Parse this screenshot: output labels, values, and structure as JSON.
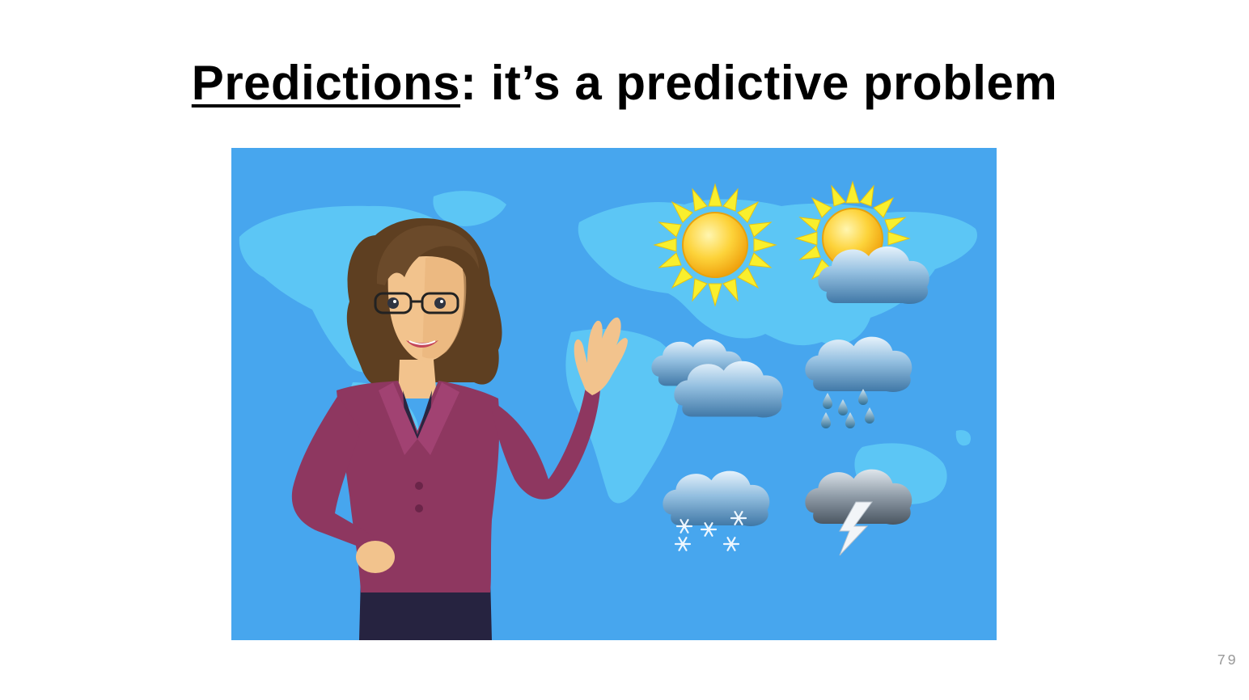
{
  "slide": {
    "title_keyword": "Predictions",
    "title_rest": ": it’s a predictive problem",
    "page_number": "79"
  },
  "illustration": {
    "subject": "weather forecaster presenting in front of world map",
    "icons": [
      "sun-icon",
      "partly-cloudy-icon",
      "cloudy-icon",
      "rain-icon",
      "snow-icon",
      "thunderstorm-icon"
    ],
    "colors": {
      "background": "#47a6ee",
      "map": "#5cc6f5",
      "jacket": "#8e3760",
      "sun": "#f6c21d"
    }
  }
}
